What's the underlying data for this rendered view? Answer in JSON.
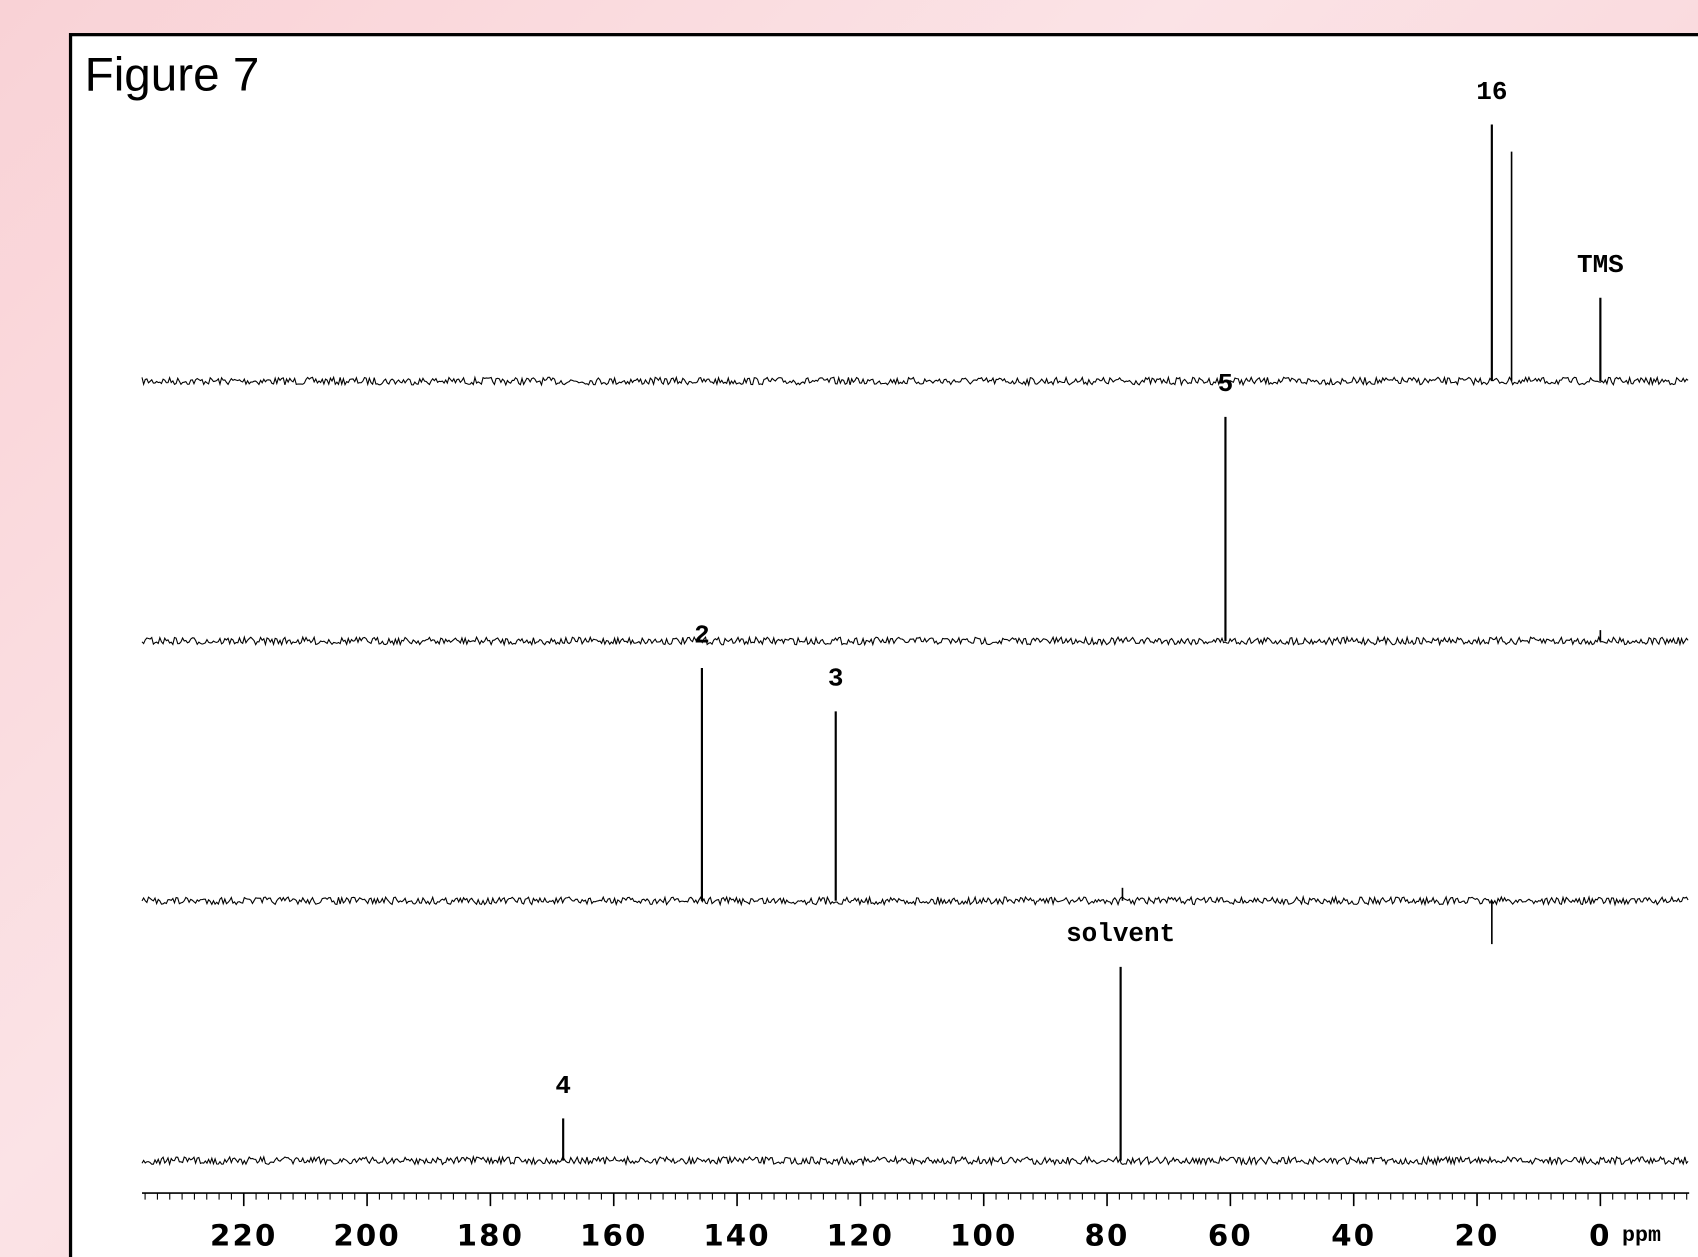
{
  "chart_data": {
    "type": "spectrum",
    "title": "Figure 7",
    "xlabel": "ppm",
    "xlim": [
      236.5,
      -14.4
    ],
    "xticks": [
      220,
      200,
      180,
      160,
      140,
      120,
      100,
      80,
      60,
      40,
      20,
      0
    ],
    "color": "#000000",
    "traces": [
      {
        "peaks": [
          {
            "ppm": 17.6,
            "intensity": 237,
            "label": "16"
          },
          {
            "ppm": 14.4,
            "intensity": 212
          },
          {
            "ppm": 0,
            "intensity": 77,
            "label": "TMS"
          }
        ]
      },
      {
        "peaks": [
          {
            "ppm": 60.8,
            "intensity": 207,
            "label": "5"
          },
          {
            "ppm": 0,
            "intensity": 10
          }
        ]
      },
      {
        "peaks": [
          {
            "ppm": 145.7,
            "intensity": 215,
            "label": "2"
          },
          {
            "ppm": 124,
            "intensity": 175,
            "label": "3"
          },
          {
            "ppm": 77.5,
            "intensity": 12
          },
          {
            "ppm": 17.6,
            "intensity": -40
          }
        ]
      },
      {
        "peaks": [
          {
            "ppm": 168.2,
            "intensity": 39,
            "label": "4"
          },
          {
            "ppm": 77.8,
            "intensity": 179,
            "label": "solvent"
          }
        ]
      }
    ]
  }
}
